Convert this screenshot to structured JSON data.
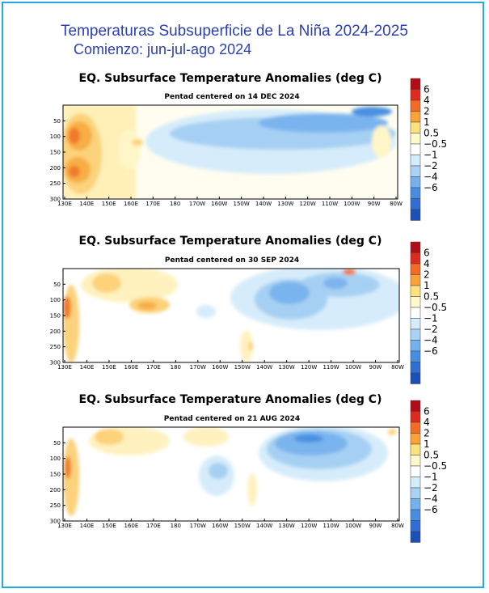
{
  "header": {
    "title": "Temperaturas Subsuperficie de La Niña 2024-2025",
    "subtitle": "Comienzo: jun-jul-ago 2024"
  },
  "colorbar": {
    "labels": [
      "6",
      "4",
      "2",
      "1",
      "0.5",
      "−0.5",
      "−1",
      "−2",
      "−4",
      "−6"
    ],
    "colors": [
      "#b10d17",
      "#e12a1f",
      "#f56a24",
      "#fba33a",
      "#fce27c",
      "#fff9cc",
      "#ffffff",
      "#d4ecfb",
      "#a9d2f5",
      "#76b1ee",
      "#478ee3",
      "#2f6fd4",
      "#1d4fb8"
    ]
  },
  "chart_data": [
    {
      "type": "heatmap",
      "title": "EQ. Subsurface Temperature Anomalies (deg C)",
      "subtitle": "Pentad centered on 14 DEC 2024",
      "x_ticks": [
        "130E",
        "140E",
        "150E",
        "160E",
        "170E",
        "180",
        "170W",
        "160W",
        "150W",
        "140W",
        "130W",
        "120W",
        "110W",
        "100W",
        "90W",
        "80W"
      ],
      "y_ticks": [
        "50",
        "100",
        "150",
        "200",
        "250",
        "300"
      ],
      "ylim": [
        0,
        300
      ],
      "features": [
        {
          "lon": "130E-150E",
          "depth": "75-250",
          "anomaly": "2 to 4"
        },
        {
          "lon": "150E-165E",
          "depth": "100-200",
          "anomaly": "0.5 to 1"
        },
        {
          "lon": "170E-150W",
          "depth": "50-175",
          "anomaly": "-0.5 to -1"
        },
        {
          "lon": "160W-90W",
          "depth": "25-175",
          "anomaly": "-1 to -4"
        },
        {
          "lon": "100W-85W",
          "depth": "100-225",
          "anomaly": "0.5 to 1"
        }
      ]
    },
    {
      "type": "heatmap",
      "title": "EQ. Subsurface Temperature Anomalies (deg C)",
      "subtitle": "Pentad centered on 30 SEP 2024",
      "x_ticks": [
        "130E",
        "140E",
        "150E",
        "160E",
        "170E",
        "180",
        "170W",
        "160W",
        "150W",
        "140W",
        "130W",
        "120W",
        "110W",
        "100W",
        "90W",
        "80W"
      ],
      "y_ticks": [
        "50",
        "100",
        "150",
        "200",
        "250",
        "300"
      ],
      "ylim": [
        0,
        300
      ],
      "features": [
        {
          "lon": "130E-133E",
          "depth": "75-300",
          "anomaly": "1 to 4"
        },
        {
          "lon": "145E-165E",
          "depth": "25-100",
          "anomaly": "1 to 2"
        },
        {
          "lon": "160E-175E",
          "depth": "100-150",
          "anomaly": "1 to 2"
        },
        {
          "lon": "150W-90W",
          "depth": "25-175",
          "anomaly": "-1 to -4"
        },
        {
          "lon": "104W-100W",
          "depth": "25-40",
          "anomaly": "2 to 6"
        },
        {
          "lon": "152W-148W",
          "depth": "225-300",
          "anomaly": "0.5 to 1"
        }
      ]
    },
    {
      "type": "heatmap",
      "title": "EQ. Subsurface Temperature Anomalies (deg C)",
      "subtitle": "Pentad centered on 21 AUG 2024",
      "x_ticks": [
        "130E",
        "140E",
        "150E",
        "160E",
        "170E",
        "180",
        "170W",
        "160W",
        "150W",
        "140W",
        "130W",
        "120W",
        "110W",
        "100W",
        "90W",
        "80W"
      ],
      "y_ticks": [
        "50",
        "100",
        "150",
        "200",
        "250",
        "300"
      ],
      "ylim": [
        0,
        300
      ],
      "features": [
        {
          "lon": "130E-135E",
          "depth": "100-275",
          "anomaly": "1 to 4"
        },
        {
          "lon": "148E-165E",
          "depth": "10-60",
          "anomaly": "0.5 to 1"
        },
        {
          "lon": "165W-155W",
          "depth": "125-200",
          "anomaly": "-0.5 to -2"
        },
        {
          "lon": "140W-85W",
          "depth": "10-175",
          "anomaly": "-1 to -4"
        }
      ]
    }
  ]
}
